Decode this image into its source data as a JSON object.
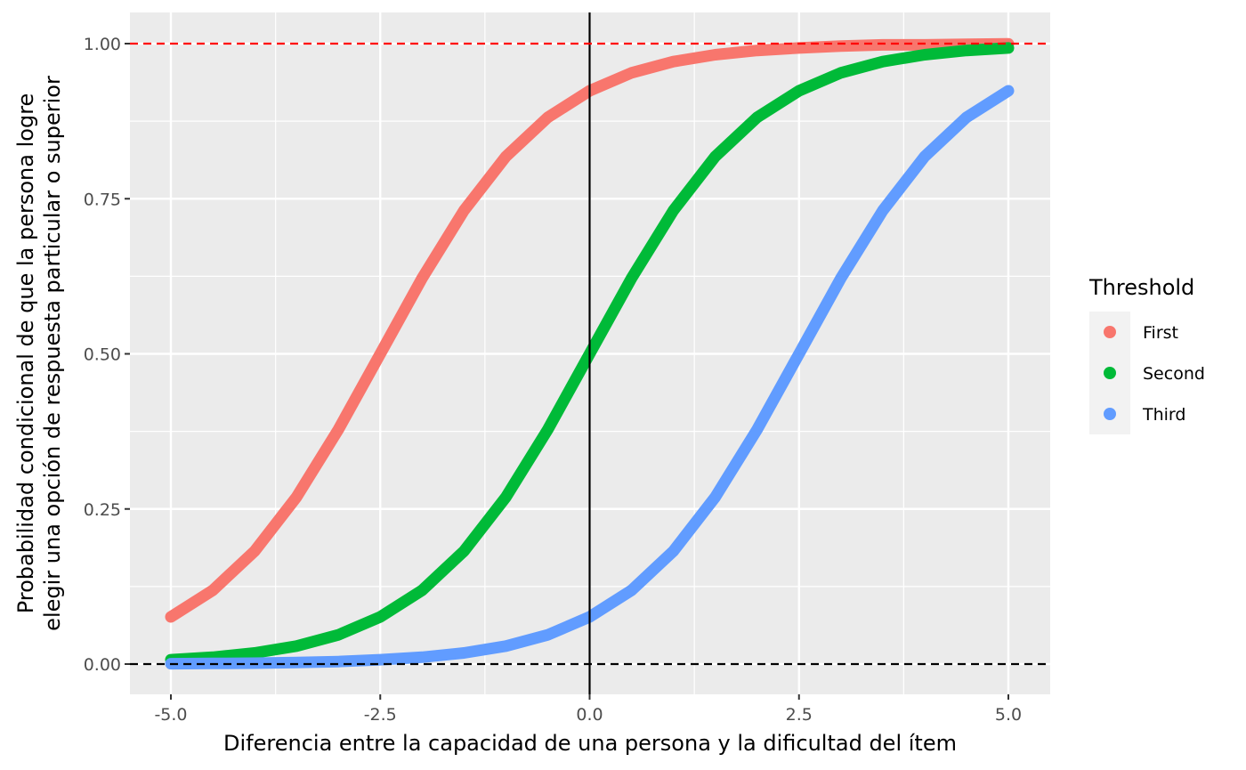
{
  "chart_data": {
    "type": "line",
    "title": "",
    "xlabel": "Diferencia entre la capacidad de una persona y la dificultad del ítem",
    "ylabel_lines": [
      "Probabilidad condicional de que la persona logre",
      "elegir una opción de respuesta particular o superior"
    ],
    "xlim": [
      -5,
      5
    ],
    "ylim": [
      0,
      1
    ],
    "x_ticks": [
      -5.0,
      -2.5,
      0.0,
      2.5,
      5.0
    ],
    "x_tick_labels": [
      "-5.0",
      "-2.5",
      "0.0",
      "2.5",
      "5.0"
    ],
    "y_ticks": [
      0.0,
      0.25,
      0.5,
      0.75,
      1.0
    ],
    "y_tick_labels": [
      "0.00",
      "0.25",
      "0.50",
      "0.75",
      "1.00"
    ],
    "grid": true,
    "legend_position": "right",
    "legend_title": "Threshold",
    "reference_lines": {
      "vertical_x": 0,
      "horizontal_top": 1.0,
      "horizontal_bottom": 0.0
    },
    "series": [
      {
        "name": "First",
        "color": "#F8766D",
        "x": [
          -5,
          -4.5,
          -4,
          -3.5,
          -3,
          -2.5,
          -2,
          -1.5,
          -1,
          -0.5,
          0,
          0.5,
          1,
          1.5,
          2,
          2.5,
          3,
          3.5,
          4,
          4.5,
          5
        ],
        "y": [
          0.076,
          0.119,
          0.182,
          0.269,
          0.378,
          0.5,
          0.622,
          0.731,
          0.818,
          0.881,
          0.924,
          0.953,
          0.971,
          0.982,
          0.989,
          0.993,
          0.996,
          0.998,
          0.998,
          0.999,
          0.9995
        ]
      },
      {
        "name": "Second",
        "color": "#00BA38",
        "x": [
          -5,
          -4.5,
          -4,
          -3.5,
          -3,
          -2.5,
          -2,
          -1.5,
          -1,
          -0.5,
          0,
          0.5,
          1,
          1.5,
          2,
          2.5,
          3,
          3.5,
          4,
          4.5,
          5
        ],
        "y": [
          0.007,
          0.011,
          0.018,
          0.029,
          0.047,
          0.076,
          0.119,
          0.182,
          0.269,
          0.378,
          0.5,
          0.622,
          0.731,
          0.818,
          0.881,
          0.924,
          0.953,
          0.971,
          0.982,
          0.989,
          0.993
        ]
      },
      {
        "name": "Third",
        "color": "#619CFF",
        "x": [
          -5,
          -4.5,
          -4,
          -3.5,
          -3,
          -2.5,
          -2,
          -1.5,
          -1,
          -0.5,
          0,
          0.5,
          1,
          1.5,
          2,
          2.5,
          3,
          3.5,
          4,
          4.5,
          5
        ],
        "y": [
          0.0006,
          0.001,
          0.0015,
          0.0025,
          0.004,
          0.007,
          0.011,
          0.018,
          0.029,
          0.047,
          0.076,
          0.119,
          0.182,
          0.269,
          0.378,
          0.5,
          0.622,
          0.731,
          0.818,
          0.881,
          0.924
        ]
      }
    ]
  }
}
